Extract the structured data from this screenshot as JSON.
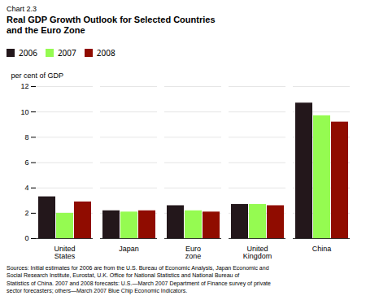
{
  "chart_data": {
    "type": "bar",
    "title": "Real GDP Growth Outlook for Selected Countries\nand the Euro Zone",
    "annotations": [
      "Chart 2.3"
    ],
    "ylabel": "per cent of GDP",
    "categories": [
      "United\nStates",
      "Japan",
      "Euro\nzone",
      "United\nKingdom",
      "China"
    ],
    "series": [
      {
        "name": "2006",
        "values": [
          3.3,
          2.2,
          2.6,
          2.7,
          10.7
        ]
      },
      {
        "name": "2007",
        "values": [
          2.0,
          2.1,
          2.2,
          2.7,
          9.7
        ]
      },
      {
        "name": "2008",
        "values": [
          2.9,
          2.2,
          2.1,
          2.6,
          9.2
        ]
      }
    ],
    "ylim": [
      0,
      12
    ],
    "yticks": [
      0,
      2,
      4,
      6,
      8,
      10,
      12
    ],
    "grid": true,
    "legend": "top",
    "caption": "Sources: Initial estimates for 2006 are from the U.S. Bureau of Economic Analysis, Japan Economic and\nSocial Research Institute, Eurostat, U.K. Office for National Statistics and National Bureau of\nStatistics of China. 2007 and 2008 forecasts: U.S.—March 2007 Department of Finance survey of private\nsector forecasters; others—March 2007 Blue Chip Economic Indicators."
  }
}
